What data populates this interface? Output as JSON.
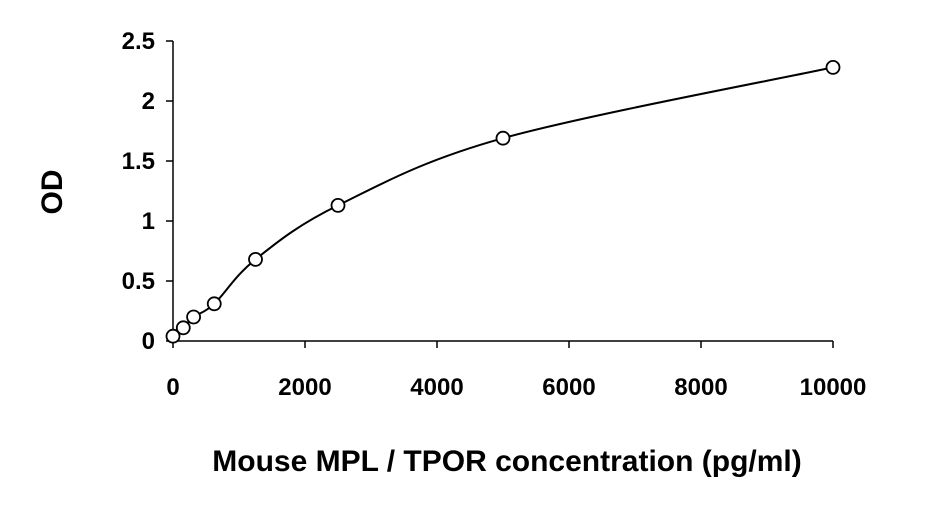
{
  "chart_data": {
    "type": "scatter",
    "title": "",
    "xlabel": "Mouse MPL / TPOR concentration (pg/ml)",
    "ylabel": "OD",
    "xlim": [
      0,
      10000
    ],
    "ylim": [
      0,
      2.5
    ],
    "x_ticks": [
      0,
      2000,
      4000,
      6000,
      8000,
      10000
    ],
    "x_tick_labels": [
      "0",
      "2000",
      "4000",
      "6000",
      "8000",
      "10000"
    ],
    "y_ticks": [
      0,
      0.5,
      1,
      1.5,
      2,
      2.5
    ],
    "y_tick_labels": [
      "0",
      "0.5",
      "1",
      "1.5",
      "2",
      "2.5"
    ],
    "grid": false,
    "legend": "none",
    "series": [
      {
        "x": [
          0,
          156,
          312,
          625,
          1250,
          2500,
          5000,
          10000
        ],
        "y": [
          0.04,
          0.11,
          0.2,
          0.31,
          0.68,
          1.13,
          1.69,
          2.28
        ],
        "marker": "open-circle",
        "line": "smooth",
        "color": "#000000"
      }
    ]
  }
}
